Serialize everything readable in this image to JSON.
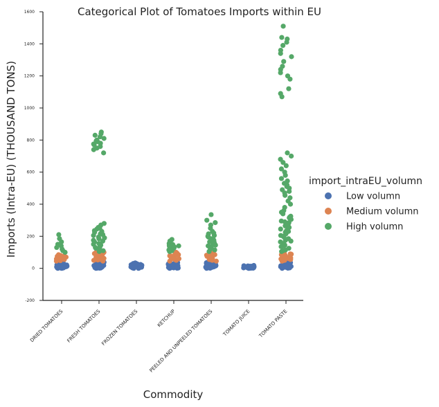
{
  "chart_data": {
    "type": "scatter",
    "subtype": "categorical-strip",
    "title": "Categorical Plot of Tomatoes Imports within EU",
    "xlabel": "Commodity",
    "ylabel": "Imports (Intra-EU) (THOUSAND TONS)",
    "ylim": [
      -200,
      1600
    ],
    "yticks": [
      -200,
      0,
      200,
      400,
      600,
      800,
      1000,
      1200,
      1400,
      1600
    ],
    "categories": [
      "DRIED TOMATOES",
      "FRESH TOMATOES",
      "FROZEN TOMATOES",
      "KETCHUP",
      "PEELED AND UNPEELED TOMATOES",
      "TOMATO JUICE",
      "TOMATO PASTE"
    ],
    "legend": {
      "title": "import_intraEU_volumn",
      "placement": "right",
      "entries": [
        {
          "name": "Low volumn",
          "color": "#4c72b0"
        },
        {
          "name": "Medium volumn",
          "color": "#dd8452"
        },
        {
          "name": "High volumn",
          "color": "#55a868"
        }
      ]
    },
    "series": [
      {
        "name": "Low volumn",
        "color": "#4c72b0",
        "values": [
          [
            0,
            1,
            2,
            3,
            5,
            6,
            8,
            10,
            12,
            14,
            16,
            18,
            20,
            22,
            25,
            28,
            30,
            0,
            2,
            4,
            7,
            9,
            11,
            13,
            15,
            18,
            21,
            24,
            27,
            1,
            3,
            6,
            10,
            14,
            19
          ],
          [
            0,
            1,
            3,
            5,
            8,
            10,
            12,
            15,
            18,
            20,
            23,
            26,
            29,
            32,
            36,
            40,
            2,
            4,
            6,
            9,
            13,
            17,
            22,
            27,
            33,
            38,
            1,
            7,
            11,
            16,
            24,
            30,
            35
          ],
          [
            0,
            1,
            2,
            3,
            4,
            6,
            8,
            10,
            12,
            14,
            16,
            18,
            20,
            22,
            25,
            28,
            30,
            34,
            0,
            2,
            5,
            7,
            9,
            11,
            13,
            15,
            17,
            19,
            21,
            24,
            27,
            31
          ],
          [
            0,
            1,
            2,
            4,
            6,
            8,
            10,
            12,
            14,
            16,
            18,
            20,
            22,
            24,
            26,
            28,
            30,
            33,
            36,
            40,
            3,
            5,
            7,
            9,
            11,
            13,
            15,
            17,
            19,
            21,
            23,
            25,
            29
          ],
          [
            0,
            1,
            2,
            4,
            6,
            8,
            10,
            12,
            14,
            16,
            18,
            20,
            22,
            24,
            26,
            28,
            30,
            32,
            35,
            38,
            3,
            5,
            7,
            9,
            11,
            13,
            15,
            17,
            19,
            21,
            23,
            27
          ],
          [
            0,
            1,
            2,
            3,
            4,
            5,
            6,
            7,
            8,
            9,
            10,
            11,
            12,
            13,
            14,
            15,
            16,
            18,
            0,
            2,
            4,
            6,
            8,
            10,
            12,
            14,
            1,
            3,
            5,
            7,
            9,
            11
          ],
          [
            0,
            1,
            2,
            4,
            6,
            8,
            10,
            12,
            14,
            16,
            18,
            20,
            22,
            25,
            28,
            32,
            36,
            40,
            44,
            3,
            5,
            7,
            9,
            11,
            13,
            15,
            17,
            19,
            21,
            24,
            27,
            30
          ]
        ]
      },
      {
        "name": "Medium volumn",
        "color": "#dd8452",
        "values": [
          [
            45,
            50,
            55,
            60,
            65,
            70,
            75,
            80,
            85,
            48,
            58,
            68,
            78
          ],
          [
            45,
            50,
            55,
            60,
            65,
            70,
            75,
            80,
            85,
            90,
            95,
            100,
            52,
            62,
            72,
            82,
            92,
            98
          ],
          [],
          [
            45,
            50,
            55,
            60,
            65,
            70,
            75,
            80,
            85,
            90,
            95,
            100,
            58,
            68,
            78,
            88
          ],
          [
            45,
            50,
            55,
            60,
            65,
            70,
            75,
            80,
            85,
            90,
            95,
            52,
            62,
            72,
            82
          ],
          [],
          [
            45,
            50,
            55,
            60,
            65,
            70,
            75,
            80,
            85,
            90,
            95,
            100,
            48,
            58,
            68,
            78,
            88
          ]
        ]
      },
      {
        "name": "High volumn",
        "color": "#55a868",
        "values": [
          [
            100,
            110,
            120,
            130,
            140,
            150,
            165,
            185,
            210
          ],
          [
            105,
            115,
            125,
            135,
            145,
            155,
            165,
            175,
            185,
            195,
            205,
            215,
            225,
            235,
            245,
            255,
            270,
            280,
            110,
            130,
            150,
            170,
            190,
            210,
            230,
            250,
            720,
            740,
            750,
            760,
            770,
            780,
            790,
            800,
            810,
            820,
            830,
            840,
            850,
            775,
            795
          ],
          [],
          [
            105,
            110,
            115,
            120,
            125,
            130,
            135,
            140,
            145,
            150,
            155,
            160,
            170,
            180,
            112,
            128,
            138,
            148
          ],
          [
            105,
            115,
            125,
            135,
            145,
            155,
            165,
            175,
            185,
            195,
            205,
            215,
            230,
            250,
            270,
            285,
            300,
            335,
            120,
            140,
            160,
            180,
            200,
            220
          ],
          [],
          [
            105,
            115,
            125,
            135,
            145,
            155,
            165,
            175,
            185,
            195,
            205,
            215,
            225,
            235,
            245,
            255,
            265,
            275,
            285,
            295,
            305,
            315,
            325,
            340,
            360,
            380,
            400,
            420,
            440,
            455,
            470,
            480,
            490,
            500,
            510,
            520,
            530,
            545,
            560,
            580,
            600,
            620,
            640,
            660,
            680,
            700,
            720,
            110,
            140,
            170,
            200,
            230,
            260,
            290,
            320,
            350,
            1070,
            1090,
            1120,
            1180,
            1200,
            1220,
            1240,
            1260,
            1290,
            1320,
            1340,
            1360,
            1390,
            1410,
            1430,
            1440,
            1510
          ]
        ]
      }
    ]
  }
}
